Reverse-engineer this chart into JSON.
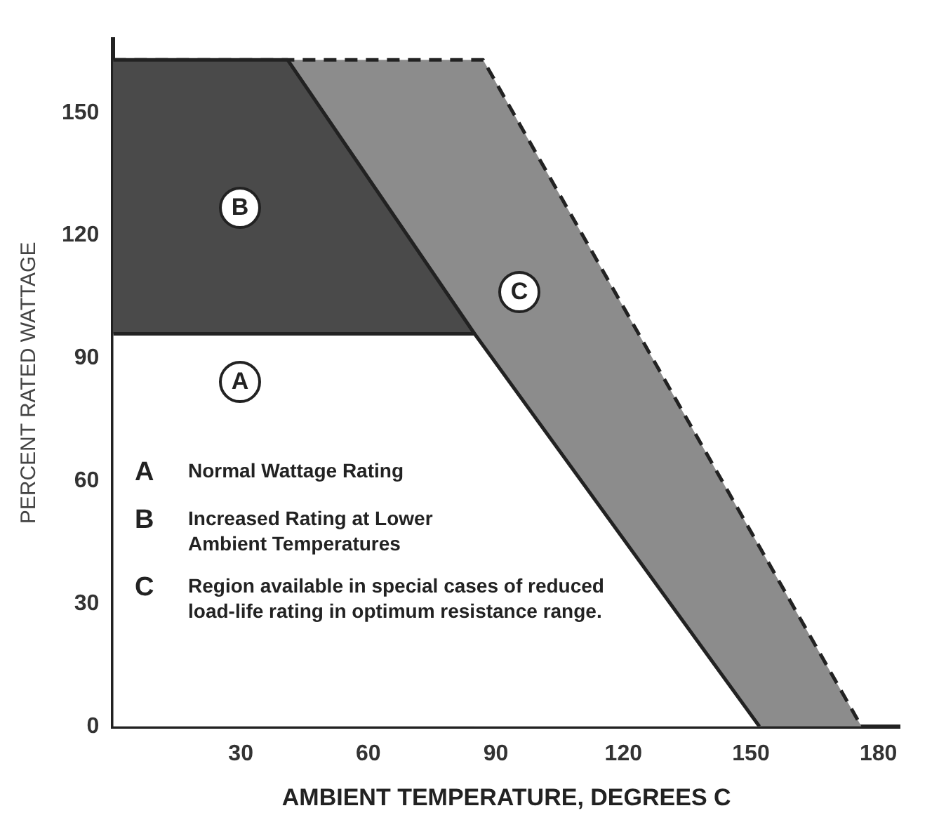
{
  "chart_data": {
    "type": "area",
    "xlabel": "AMBIENT TEMPERATURE, DEGREES C",
    "ylabel": "PERCENT RATED WATTAGE",
    "series": [
      {
        "x": [
          0,
          85,
          152
        ],
        "values": [
          96,
          96,
          0
        ],
        "color": "#ffffff"
      },
      {
        "x": [
          0,
          41,
          85
        ],
        "values": [
          163,
          163,
          96
        ],
        "color": "#4a4a4a"
      },
      {
        "x": [
          0,
          87,
          176
        ],
        "values": [
          163,
          163,
          0
        ],
        "color": "#8c8c8c",
        "line_style": "dashed"
      }
    ],
    "xlim": [
      0,
      185
    ],
    "ylim": [
      0,
      168
    ],
    "xticks": [
      30,
      60,
      90,
      120,
      150,
      180
    ],
    "yticks": [
      0,
      30,
      60,
      90,
      120,
      150
    ],
    "grid": false,
    "legend": false,
    "marker": "none",
    "line_style": "solid",
    "annotations": [
      "A Normal Wattage Rating",
      "B Increased Rating at Lower Ambient Temperatures",
      "C Region available in special cases of reduced load-life rating in optimum resistance range.",
      "A",
      "B",
      "C"
    ]
  }
}
